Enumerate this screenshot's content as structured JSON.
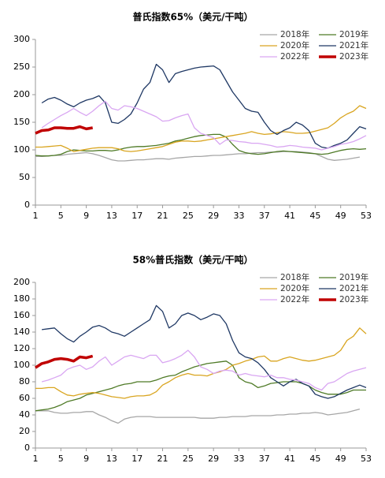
{
  "chart_data": [
    {
      "type": "line",
      "title": "普氏指数65%（美元/干吨）",
      "x": [
        1,
        2,
        3,
        4,
        5,
        6,
        7,
        8,
        9,
        10,
        11,
        12,
        13,
        14,
        15,
        16,
        17,
        18,
        19,
        20,
        21,
        22,
        23,
        24,
        25,
        26,
        27,
        28,
        29,
        30,
        31,
        32,
        33,
        34,
        35,
        36,
        37,
        38,
        39,
        40,
        41,
        42,
        43,
        44,
        45,
        46,
        47,
        48,
        49,
        50,
        51,
        52,
        53
      ],
      "xlim": [
        1,
        53
      ],
      "xticks": [
        1,
        5,
        9,
        13,
        17,
        21,
        25,
        29,
        33,
        37,
        41,
        45,
        49,
        53
      ],
      "ylim": [
        0,
        300
      ],
      "yticks": [
        0,
        50,
        100,
        150,
        200,
        250,
        300
      ],
      "legend": "upper right",
      "series": [
        {
          "name": "2018年",
          "color": "#a6a6a6",
          "values": [
            88,
            88,
            89,
            90,
            90,
            92,
            93,
            94,
            95,
            93,
            90,
            86,
            82,
            80,
            80,
            81,
            82,
            82,
            83,
            84,
            84,
            83,
            85,
            86,
            87,
            88,
            88,
            89,
            90,
            90,
            91,
            92,
            93,
            93,
            94,
            95,
            95,
            96,
            96,
            97,
            97,
            97,
            96,
            95,
            93,
            88,
            83,
            81,
            82,
            83,
            85,
            87,
            null
          ]
        },
        {
          "name": "2019年",
          "color": "#4e7a26",
          "values": [
            90,
            89,
            89,
            90,
            92,
            97,
            100,
            99,
            98,
            98,
            99,
            99,
            98,
            100,
            103,
            105,
            106,
            106,
            107,
            108,
            110,
            112,
            116,
            118,
            121,
            124,
            126,
            127,
            128,
            128,
            123,
            110,
            99,
            95,
            93,
            92,
            93,
            95,
            97,
            98,
            97,
            96,
            95,
            94,
            93,
            92,
            93,
            96,
            99,
            101,
            102,
            101,
            102
          ]
        },
        {
          "name": "2020年",
          "color": "#d9a520",
          "values": [
            105,
            105,
            106,
            107,
            108,
            103,
            97,
            99,
            101,
            103,
            104,
            104,
            104,
            102,
            98,
            97,
            98,
            100,
            102,
            104,
            106,
            110,
            114,
            116,
            116,
            115,
            116,
            118,
            120,
            122,
            124,
            126,
            128,
            130,
            133,
            130,
            128,
            129,
            131,
            133,
            132,
            130,
            130,
            131,
            134,
            137,
            140,
            148,
            158,
            165,
            170,
            180,
            175
          ]
        },
        {
          "name": "2021年",
          "color": "#1f3864",
          "values": [
            null,
            185,
            192,
            195,
            190,
            183,
            178,
            185,
            190,
            193,
            198,
            185,
            150,
            148,
            155,
            165,
            185,
            210,
            222,
            255,
            245,
            222,
            238,
            242,
            245,
            248,
            250,
            251,
            252,
            245,
            225,
            205,
            190,
            175,
            170,
            168,
            150,
            135,
            128,
            135,
            140,
            150,
            145,
            135,
            112,
            105,
            103,
            108,
            112,
            118,
            130,
            142,
            138
          ]
        },
        {
          "name": "2022年",
          "color": "#d9a6f2",
          "values": [
            null,
            140,
            148,
            155,
            162,
            168,
            175,
            168,
            162,
            170,
            180,
            188,
            175,
            172,
            180,
            178,
            175,
            170,
            165,
            160,
            152,
            153,
            158,
            162,
            165,
            140,
            130,
            126,
            122,
            110,
            118,
            117,
            115,
            114,
            112,
            112,
            110,
            108,
            105,
            106,
            108,
            107,
            105,
            104,
            103,
            100,
            103,
            106,
            110,
            112,
            115,
            120,
            126
          ]
        },
        {
          "name": "2023年",
          "color": "#c00000",
          "values": [
            130,
            135,
            136,
            140,
            140,
            139,
            139,
            142,
            138,
            140,
            null,
            null,
            null,
            null,
            null,
            null,
            null,
            null,
            null,
            null,
            null,
            null,
            null,
            null,
            null,
            null,
            null,
            null,
            null,
            null,
            null,
            null,
            null,
            null,
            null,
            null,
            null,
            null,
            null,
            null,
            null,
            null,
            null,
            null,
            null,
            null,
            null,
            null,
            null,
            null,
            null,
            null,
            null
          ]
        }
      ]
    },
    {
      "type": "line",
      "title": "58%普氏指数（美元/干吨）",
      "x": [
        1,
        2,
        3,
        4,
        5,
        6,
        7,
        8,
        9,
        10,
        11,
        12,
        13,
        14,
        15,
        16,
        17,
        18,
        19,
        20,
        21,
        22,
        23,
        24,
        25,
        26,
        27,
        28,
        29,
        30,
        31,
        32,
        33,
        34,
        35,
        36,
        37,
        38,
        39,
        40,
        41,
        42,
        43,
        44,
        45,
        46,
        47,
        48,
        49,
        50,
        51,
        52,
        53
      ],
      "xlim": [
        1,
        53
      ],
      "xticks": [
        1,
        5,
        9,
        13,
        17,
        21,
        25,
        29,
        33,
        37,
        41,
        45,
        49,
        53
      ],
      "ylim": [
        0,
        200
      ],
      "yticks": [
        0,
        20,
        40,
        60,
        80,
        100,
        120,
        140,
        160,
        180,
        200
      ],
      "legend": "upper right",
      "series": [
        {
          "name": "2018年",
          "color": "#a6a6a6",
          "values": [
            45,
            45,
            45,
            43,
            42,
            42,
            43,
            43,
            44,
            44,
            40,
            37,
            33,
            30,
            35,
            37,
            38,
            38,
            38,
            37,
            37,
            37,
            37,
            37,
            37,
            37,
            36,
            36,
            36,
            37,
            37,
            38,
            38,
            38,
            39,
            39,
            39,
            39,
            40,
            40,
            41,
            41,
            42,
            42,
            43,
            42,
            40,
            41,
            42,
            43,
            45,
            47,
            null
          ]
        },
        {
          "name": "2019年",
          "color": "#4e7a26",
          "values": [
            45,
            46,
            47,
            49,
            52,
            56,
            58,
            60,
            64,
            66,
            68,
            70,
            72,
            75,
            77,
            78,
            80,
            80,
            80,
            82,
            85,
            87,
            88,
            92,
            95,
            98,
            100,
            102,
            103,
            104,
            105,
            100,
            85,
            80,
            78,
            73,
            75,
            78,
            79,
            80,
            80,
            80,
            78,
            75,
            70,
            67,
            65,
            65,
            65,
            67,
            70,
            70,
            70
          ]
        },
        {
          "name": "2020年",
          "color": "#d9a520",
          "values": [
            72,
            72,
            73,
            73,
            68,
            64,
            63,
            65,
            66,
            67,
            66,
            64,
            62,
            61,
            60,
            62,
            63,
            63,
            64,
            68,
            76,
            80,
            85,
            88,
            90,
            88,
            88,
            87,
            90,
            92,
            95,
            100,
            102,
            105,
            107,
            110,
            111,
            105,
            105,
            108,
            110,
            108,
            106,
            105,
            106,
            108,
            110,
            112,
            118,
            130,
            135,
            145,
            138
          ]
        },
        {
          "name": "2021年",
          "color": "#1f3864",
          "values": [
            null,
            143,
            144,
            145,
            138,
            132,
            128,
            135,
            140,
            146,
            148,
            145,
            140,
            138,
            135,
            140,
            145,
            150,
            155,
            172,
            165,
            145,
            150,
            160,
            163,
            160,
            155,
            158,
            162,
            160,
            150,
            130,
            115,
            110,
            108,
            103,
            95,
            85,
            80,
            75,
            80,
            83,
            78,
            75,
            65,
            62,
            60,
            62,
            66,
            70,
            73,
            76,
            73
          ]
        },
        {
          "name": "2022年",
          "color": "#d9a6f2",
          "values": [
            null,
            80,
            82,
            85,
            88,
            95,
            98,
            100,
            95,
            98,
            105,
            110,
            100,
            105,
            110,
            112,
            110,
            108,
            112,
            112,
            103,
            105,
            108,
            112,
            118,
            110,
            98,
            95,
            90,
            93,
            94,
            93,
            88,
            90,
            88,
            87,
            86,
            88,
            85,
            85,
            83,
            82,
            80,
            78,
            73,
            70,
            78,
            80,
            85,
            90,
            93,
            95,
            97
          ]
        },
        {
          "name": "2023年",
          "color": "#c00000",
          "values": [
            97,
            102,
            104,
            107,
            108,
            107,
            105,
            110,
            109,
            111,
            null,
            null,
            null,
            null,
            null,
            null,
            null,
            null,
            null,
            null,
            null,
            null,
            null,
            null,
            null,
            null,
            null,
            null,
            null,
            null,
            null,
            null,
            null,
            null,
            null,
            null,
            null,
            null,
            null,
            null,
            null,
            null,
            null,
            null,
            null,
            null,
            null,
            null,
            null,
            null,
            null,
            null,
            null
          ]
        }
      ]
    }
  ]
}
